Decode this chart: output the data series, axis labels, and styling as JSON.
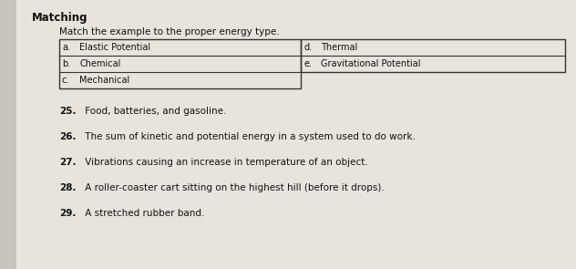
{
  "title": "Matching",
  "subtitle": "Match the example to the proper energy type.",
  "table": {
    "left_col": [
      [
        "a.",
        "Elastic Potential"
      ],
      [
        "b.",
        "Chemical"
      ],
      [
        "c.",
        "Mechanical"
      ]
    ],
    "right_col": [
      [
        "d.",
        "Thermal"
      ],
      [
        "e.",
        "Gravitational Potential"
      ],
      [
        "",
        ""
      ]
    ]
  },
  "questions": [
    [
      "25.",
      " Food, batteries, and gasoline."
    ],
    [
      "26.",
      " The sum of kinetic and potential energy in a system used to do work."
    ],
    [
      "27.",
      " Vibrations causing an increase in temperature of an object."
    ],
    [
      "28.",
      " A roller-coaster cart sitting on the highest hill (before it drops)."
    ],
    [
      "29.",
      " A stretched rubber band."
    ]
  ],
  "bg_color": "#c8c4bc",
  "paper_color": "#e8e4dc",
  "text_color": "#111111",
  "table_line_color": "#333333",
  "title_fontsize": 8.5,
  "subtitle_fontsize": 7.5,
  "table_fontsize": 7.0,
  "question_fontsize": 7.5
}
